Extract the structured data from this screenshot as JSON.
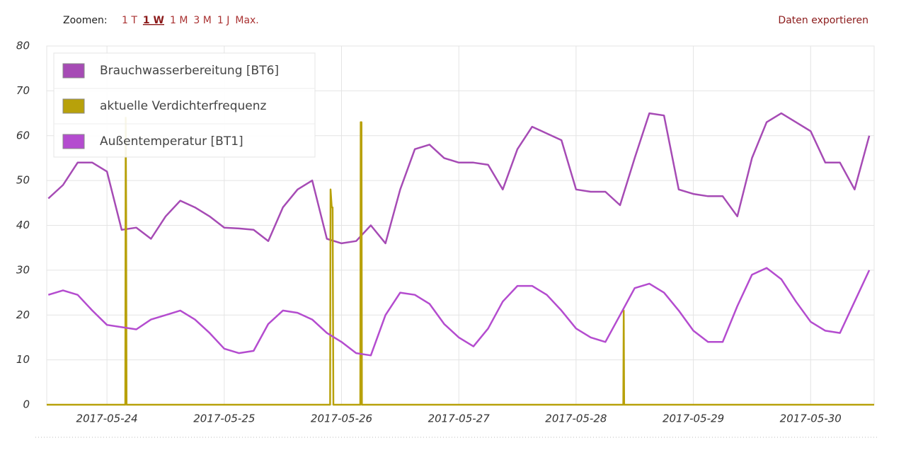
{
  "toolbar": {
    "zoom_label": "Zoomen:",
    "zoom_options": [
      "1 T",
      "1 W",
      "1 M",
      "3 M",
      "1 J",
      "Max."
    ],
    "export": "Daten exportieren"
  },
  "chart_data": {
    "type": "line",
    "x": [
      "2017-05-23T12:00",
      "2017-05-23T15:00",
      "2017-05-23T18:00",
      "2017-05-23T21:00",
      "2017-05-24T00:00",
      "2017-05-24T03:00",
      "2017-05-24T06:00",
      "2017-05-24T09:00",
      "2017-05-24T12:00",
      "2017-05-24T15:00",
      "2017-05-24T18:00",
      "2017-05-24T21:00",
      "2017-05-25T00:00",
      "2017-05-25T03:00",
      "2017-05-25T06:00",
      "2017-05-25T09:00",
      "2017-05-25T12:00",
      "2017-05-25T15:00",
      "2017-05-25T18:00",
      "2017-05-25T21:00",
      "2017-05-26T00:00",
      "2017-05-26T03:00",
      "2017-05-26T06:00",
      "2017-05-26T09:00",
      "2017-05-26T12:00",
      "2017-05-26T15:00",
      "2017-05-26T18:00",
      "2017-05-26T21:00",
      "2017-05-27T00:00",
      "2017-05-27T03:00",
      "2017-05-27T06:00",
      "2017-05-27T09:00",
      "2017-05-27T12:00",
      "2017-05-27T15:00",
      "2017-05-27T18:00",
      "2017-05-27T21:00",
      "2017-05-28T00:00",
      "2017-05-28T03:00",
      "2017-05-28T06:00",
      "2017-05-28T09:00",
      "2017-05-28T12:00",
      "2017-05-28T15:00",
      "2017-05-28T18:00",
      "2017-05-28T21:00",
      "2017-05-29T00:00",
      "2017-05-29T03:00",
      "2017-05-29T06:00",
      "2017-05-29T09:00",
      "2017-05-29T12:00",
      "2017-05-29T15:00",
      "2017-05-29T18:00",
      "2017-05-29T21:00",
      "2017-05-30T00:00",
      "2017-05-30T03:00",
      "2017-05-30T06:00",
      "2017-05-30T09:00",
      "2017-05-30T12:00"
    ],
    "series": [
      {
        "name": "Brauchwasserbereitung [BT6]",
        "color": "#a64bb5",
        "values": [
          46,
          49,
          54,
          54,
          52,
          39,
          39.5,
          37,
          42,
          45.5,
          44,
          42,
          39.5,
          39.3,
          39,
          36.5,
          44,
          48,
          50,
          37,
          36,
          36.5,
          40,
          36,
          48,
          57,
          58,
          55,
          54,
          54,
          53.5,
          48,
          57,
          62,
          60.5,
          59,
          48,
          47.5,
          47.5,
          44.5,
          55,
          65,
          64.5,
          48,
          47,
          46.5,
          46.5,
          42,
          55,
          63,
          65,
          63,
          61,
          54,
          54,
          48,
          60
        ]
      },
      {
        "name": "aktuelle Verdichterfrequenz",
        "color": "#b8a10a",
        "x": [
          "2017-05-23T11:40",
          "2017-05-24T03:45",
          "2017-05-24T03:50",
          "2017-05-24T03:55",
          "2017-05-24T04:00",
          "2017-05-25T21:40",
          "2017-05-25T21:45",
          "2017-05-25T22:00",
          "2017-05-25T22:10",
          "2017-05-25T22:20",
          "2017-05-26T03:50",
          "2017-05-26T03:55",
          "2017-05-26T04:05",
          "2017-05-26T04:10",
          "2017-05-28T09:40",
          "2017-05-28T09:45",
          "2017-05-28T09:50",
          "2017-05-30T13:00"
        ],
        "values": [
          0,
          0,
          64,
          44,
          0,
          0,
          48,
          44,
          44,
          0,
          0,
          63,
          63,
          0,
          0,
          21,
          0,
          0
        ]
      },
      {
        "name": "Außentemperatur [BT1]",
        "color": "#b44ccf",
        "values": [
          24.5,
          25.5,
          24.5,
          21,
          17.8,
          17.3,
          16.8,
          19,
          20,
          21,
          19,
          16,
          12.5,
          11.5,
          12,
          18,
          21,
          20.5,
          19,
          16,
          14,
          11.5,
          11,
          20,
          25,
          24.5,
          22.5,
          18,
          15,
          13,
          17,
          23,
          26.5,
          26.5,
          24.5,
          21,
          17,
          15,
          14,
          20,
          26,
          27,
          25,
          21,
          16.5,
          14,
          14,
          22,
          29,
          30.5,
          28,
          23,
          18.5,
          16.5,
          16,
          23,
          30
        ]
      }
    ],
    "xlim": [
      "2017-05-23T11:40",
      "2017-05-30T13:00"
    ],
    "xticks": [
      {
        "value": "2017-05-24T00:00",
        "label": "2017-05-24"
      },
      {
        "value": "2017-05-25T00:00",
        "label": "2017-05-25"
      },
      {
        "value": "2017-05-26T00:00",
        "label": "2017-05-26"
      },
      {
        "value": "2017-05-27T00:00",
        "label": "2017-05-27"
      },
      {
        "value": "2017-05-28T00:00",
        "label": "2017-05-28"
      },
      {
        "value": "2017-05-29T00:00",
        "label": "2017-05-29"
      },
      {
        "value": "2017-05-30T00:00",
        "label": "2017-05-30"
      }
    ],
    "ylim": [
      0,
      80
    ],
    "yticks": [
      0,
      10,
      20,
      30,
      40,
      50,
      60,
      70,
      80
    ],
    "grid": true,
    "legend": "top-left"
  }
}
